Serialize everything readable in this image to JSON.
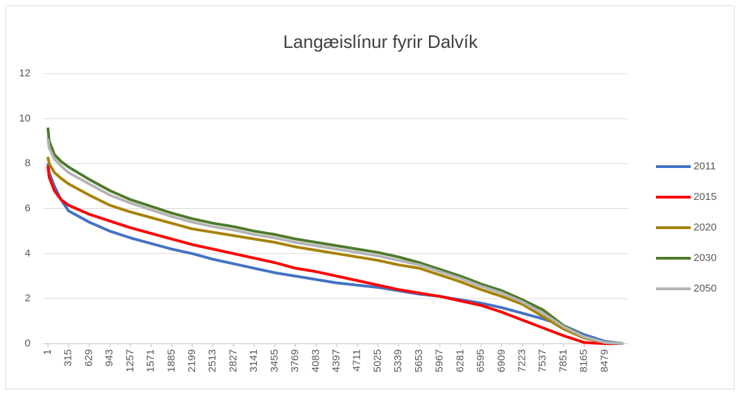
{
  "chart_data": {
    "type": "line",
    "title": "Langæislínur fyrir Dalvík",
    "x": [
      1,
      20,
      100,
      200,
      315,
      629,
      943,
      1257,
      1571,
      1885,
      2199,
      2513,
      2827,
      3141,
      3455,
      3769,
      4083,
      4397,
      4711,
      5025,
      5339,
      5653,
      5967,
      6281,
      6595,
      6909,
      7223,
      7537,
      7851,
      8165,
      8479,
      8760
    ],
    "xlim": [
      1,
      8760
    ],
    "xticks": [
      1,
      315,
      629,
      943,
      1257,
      1571,
      1885,
      2199,
      2513,
      2827,
      3141,
      3455,
      3769,
      4083,
      4397,
      4711,
      5025,
      5339,
      5653,
      5967,
      6281,
      6595,
      6909,
      7223,
      7537,
      7851,
      8165,
      8479
    ],
    "ylim": [
      0,
      12
    ],
    "yticks": [
      0,
      2,
      4,
      6,
      8,
      10,
      12
    ],
    "grid": true,
    "legend": "right",
    "series": [
      {
        "name": "2011",
        "color": "#4472c4",
        "values": [
          8.0,
          7.6,
          7.0,
          6.4,
          5.9,
          5.4,
          5.0,
          4.7,
          4.45,
          4.2,
          4.0,
          3.75,
          3.55,
          3.35,
          3.15,
          3.0,
          2.85,
          2.7,
          2.6,
          2.5,
          2.35,
          2.2,
          2.1,
          1.95,
          1.8,
          1.6,
          1.35,
          1.1,
          0.8,
          0.4,
          0.1,
          0
        ]
      },
      {
        "name": "2015",
        "color": "#ff0000",
        "values": [
          7.9,
          7.4,
          6.8,
          6.4,
          6.15,
          5.75,
          5.45,
          5.15,
          4.9,
          4.65,
          4.4,
          4.2,
          4.0,
          3.8,
          3.6,
          3.35,
          3.2,
          3.0,
          2.8,
          2.6,
          2.4,
          2.25,
          2.1,
          1.9,
          1.7,
          1.4,
          1.05,
          0.7,
          0.35,
          0.05,
          0,
          0
        ]
      },
      {
        "name": "2020",
        "color": "#a88208",
        "values": [
          8.3,
          8.0,
          7.6,
          7.35,
          7.1,
          6.6,
          6.15,
          5.85,
          5.6,
          5.35,
          5.1,
          4.95,
          4.8,
          4.65,
          4.5,
          4.3,
          4.15,
          4.0,
          3.85,
          3.7,
          3.5,
          3.35,
          3.05,
          2.75,
          2.4,
          2.1,
          1.75,
          1.2,
          0.65,
          0.25,
          0.05,
          0
        ]
      },
      {
        "name": "2030",
        "color": "#4e7a2c",
        "values": [
          9.6,
          9.0,
          8.4,
          8.1,
          7.85,
          7.3,
          6.8,
          6.4,
          6.1,
          5.8,
          5.55,
          5.35,
          5.2,
          5.0,
          4.85,
          4.65,
          4.5,
          4.35,
          4.2,
          4.05,
          3.85,
          3.6,
          3.3,
          3.0,
          2.65,
          2.35,
          1.95,
          1.5,
          0.8,
          0.3,
          0.05,
          0
        ]
      },
      {
        "name": "2050",
        "color": "#b4b4b4",
        "values": [
          9.1,
          8.7,
          8.2,
          7.9,
          7.6,
          7.1,
          6.6,
          6.25,
          5.95,
          5.65,
          5.4,
          5.2,
          5.05,
          4.85,
          4.7,
          4.5,
          4.35,
          4.2,
          4.05,
          3.9,
          3.7,
          3.5,
          3.2,
          2.9,
          2.55,
          2.25,
          1.85,
          1.35,
          0.75,
          0.3,
          0.05,
          0
        ]
      }
    ]
  }
}
